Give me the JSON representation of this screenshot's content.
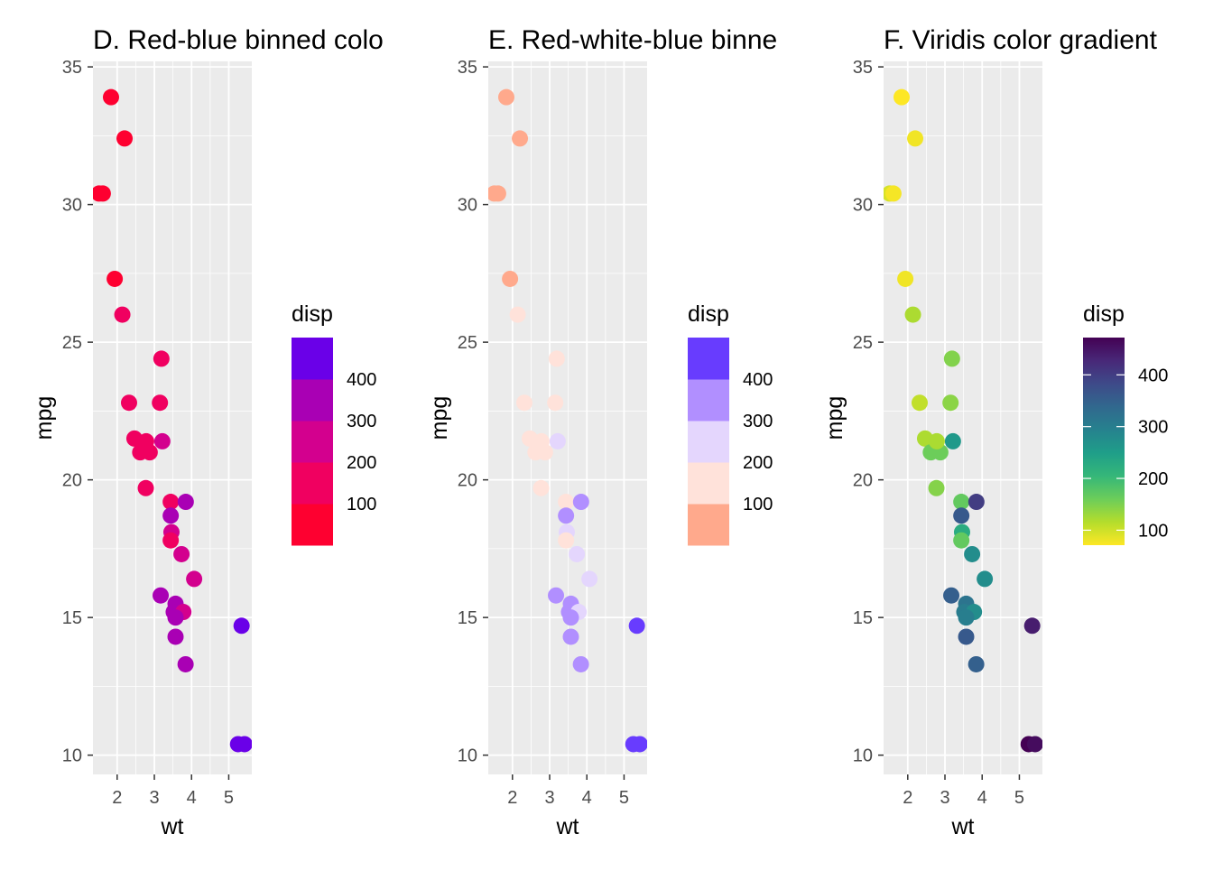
{
  "chart_data": [
    {
      "type": "scatter",
      "title": "D. Red-blue binned colo",
      "xlabel": "wt",
      "ylabel": "mpg",
      "xlim": [
        1.35,
        5.62
      ],
      "ylim": [
        9.3,
        35.2
      ],
      "x_ticks": [
        2,
        3,
        4,
        5
      ],
      "y_ticks": [
        10,
        15,
        20,
        25,
        30,
        35
      ],
      "grid": true,
      "legend": {
        "title": "disp",
        "kind": "binned",
        "position": "right",
        "labels": [
          "100",
          "200",
          "300",
          "400"
        ],
        "colors": [
          "#fe0030",
          "#f00060",
          "#d3008e",
          "#a900b4",
          "#6a00e8"
        ]
      },
      "points": [
        {
          "x": 1.835,
          "y": 33.9,
          "color": "#fe0030"
        },
        {
          "x": 2.2,
          "y": 32.4,
          "color": "#fe0030"
        },
        {
          "x": 1.513,
          "y": 30.4,
          "color": "#fe0030"
        },
        {
          "x": 1.615,
          "y": 30.4,
          "color": "#fe0030"
        },
        {
          "x": 1.935,
          "y": 27.3,
          "color": "#fe0030"
        },
        {
          "x": 2.14,
          "y": 26.0,
          "color": "#f00060"
        },
        {
          "x": 3.19,
          "y": 24.4,
          "color": "#f00060"
        },
        {
          "x": 2.32,
          "y": 22.8,
          "color": "#f00060"
        },
        {
          "x": 3.15,
          "y": 22.8,
          "color": "#f00060"
        },
        {
          "x": 2.465,
          "y": 21.5,
          "color": "#f00060"
        },
        {
          "x": 3.215,
          "y": 21.4,
          "color": "#d3008e"
        },
        {
          "x": 2.62,
          "y": 21.0,
          "color": "#f00060"
        },
        {
          "x": 2.875,
          "y": 21.0,
          "color": "#f00060"
        },
        {
          "x": 2.78,
          "y": 21.4,
          "color": "#f00060"
        },
        {
          "x": 2.77,
          "y": 19.7,
          "color": "#f00060"
        },
        {
          "x": 3.44,
          "y": 19.2,
          "color": "#f00060"
        },
        {
          "x": 3.845,
          "y": 19.2,
          "color": "#a900b4"
        },
        {
          "x": 3.44,
          "y": 18.7,
          "color": "#a900b4"
        },
        {
          "x": 3.46,
          "y": 18.1,
          "color": "#d3008e"
        },
        {
          "x": 3.44,
          "y": 17.8,
          "color": "#f00060"
        },
        {
          "x": 3.73,
          "y": 17.3,
          "color": "#d3008e"
        },
        {
          "x": 4.07,
          "y": 16.4,
          "color": "#d3008e"
        },
        {
          "x": 3.17,
          "y": 15.8,
          "color": "#a900b4"
        },
        {
          "x": 3.57,
          "y": 15.5,
          "color": "#a900b4"
        },
        {
          "x": 3.52,
          "y": 15.2,
          "color": "#a900b4"
        },
        {
          "x": 3.78,
          "y": 15.2,
          "color": "#d3008e"
        },
        {
          "x": 3.57,
          "y": 15.0,
          "color": "#a900b4"
        },
        {
          "x": 3.57,
          "y": 14.3,
          "color": "#a900b4"
        },
        {
          "x": 3.84,
          "y": 13.3,
          "color": "#a900b4"
        },
        {
          "x": 5.345,
          "y": 14.7,
          "color": "#6a00e8"
        },
        {
          "x": 5.25,
          "y": 10.4,
          "color": "#6a00e8"
        },
        {
          "x": 5.424,
          "y": 10.4,
          "color": "#6a00e8"
        }
      ]
    },
    {
      "type": "scatter",
      "title": "E. Red-white-blue binne",
      "xlabel": "wt",
      "ylabel": "mpg",
      "xlim": [
        1.35,
        5.62
      ],
      "ylim": [
        9.3,
        35.2
      ],
      "x_ticks": [
        2,
        3,
        4,
        5
      ],
      "y_ticks": [
        10,
        15,
        20,
        25,
        30,
        35
      ],
      "grid": true,
      "legend": {
        "title": "disp",
        "kind": "binned",
        "position": "right",
        "labels": [
          "100",
          "200",
          "300",
          "400"
        ],
        "colors": [
          "#ffa98c",
          "#ffe2da",
          "#e4d6fd",
          "#b18fff",
          "#683cfe"
        ]
      },
      "points": [
        {
          "x": 1.835,
          "y": 33.9,
          "color": "#ffa98c"
        },
        {
          "x": 2.2,
          "y": 32.4,
          "color": "#ffa98c"
        },
        {
          "x": 1.513,
          "y": 30.4,
          "color": "#ffa98c"
        },
        {
          "x": 1.615,
          "y": 30.4,
          "color": "#ffa98c"
        },
        {
          "x": 1.935,
          "y": 27.3,
          "color": "#ffa98c"
        },
        {
          "x": 2.14,
          "y": 26.0,
          "color": "#ffe2da"
        },
        {
          "x": 3.19,
          "y": 24.4,
          "color": "#ffe2da"
        },
        {
          "x": 2.32,
          "y": 22.8,
          "color": "#ffe2da"
        },
        {
          "x": 3.15,
          "y": 22.8,
          "color": "#ffe2da"
        },
        {
          "x": 2.465,
          "y": 21.5,
          "color": "#ffe2da"
        },
        {
          "x": 3.215,
          "y": 21.4,
          "color": "#e4d6fd"
        },
        {
          "x": 2.62,
          "y": 21.0,
          "color": "#ffe2da"
        },
        {
          "x": 2.875,
          "y": 21.0,
          "color": "#ffe2da"
        },
        {
          "x": 2.78,
          "y": 21.4,
          "color": "#ffe2da"
        },
        {
          "x": 2.77,
          "y": 19.7,
          "color": "#ffe2da"
        },
        {
          "x": 3.44,
          "y": 19.2,
          "color": "#ffe2da"
        },
        {
          "x": 3.845,
          "y": 19.2,
          "color": "#b18fff"
        },
        {
          "x": 3.44,
          "y": 18.7,
          "color": "#b18fff"
        },
        {
          "x": 3.46,
          "y": 18.1,
          "color": "#e4d6fd"
        },
        {
          "x": 3.44,
          "y": 17.8,
          "color": "#ffe2da"
        },
        {
          "x": 3.73,
          "y": 17.3,
          "color": "#e4d6fd"
        },
        {
          "x": 4.07,
          "y": 16.4,
          "color": "#e4d6fd"
        },
        {
          "x": 3.17,
          "y": 15.8,
          "color": "#b18fff"
        },
        {
          "x": 3.57,
          "y": 15.5,
          "color": "#b18fff"
        },
        {
          "x": 3.52,
          "y": 15.2,
          "color": "#b18fff"
        },
        {
          "x": 3.78,
          "y": 15.2,
          "color": "#e4d6fd"
        },
        {
          "x": 3.57,
          "y": 15.0,
          "color": "#b18fff"
        },
        {
          "x": 3.57,
          "y": 14.3,
          "color": "#b18fff"
        },
        {
          "x": 3.84,
          "y": 13.3,
          "color": "#b18fff"
        },
        {
          "x": 5.345,
          "y": 14.7,
          "color": "#683cfe"
        },
        {
          "x": 5.25,
          "y": 10.4,
          "color": "#683cfe"
        },
        {
          "x": 5.424,
          "y": 10.4,
          "color": "#683cfe"
        }
      ]
    },
    {
      "type": "scatter",
      "title": "F. Viridis color gradient",
      "xlabel": "wt",
      "ylabel": "mpg",
      "xlim": [
        1.35,
        5.62
      ],
      "ylim": [
        9.3,
        35.2
      ],
      "x_ticks": [
        2,
        3,
        4,
        5
      ],
      "y_ticks": [
        10,
        15,
        20,
        25,
        30,
        35
      ],
      "grid": true,
      "legend": {
        "title": "disp",
        "kind": "gradient",
        "position": "right",
        "labels": [
          "100",
          "200",
          "300",
          "400"
        ],
        "tick_values": [
          100,
          200,
          300,
          400
        ],
        "range": [
          71.1,
          472
        ],
        "colors": [
          "#fde725",
          "#b4dd2c",
          "#6ccd5a",
          "#35b779",
          "#1f9e89",
          "#26828e",
          "#31688e",
          "#3e4a89",
          "#482878",
          "#440154"
        ]
      },
      "points": [
        {
          "x": 1.835,
          "y": 33.9,
          "disp": 71.1
        },
        {
          "x": 2.2,
          "y": 32.4,
          "disp": 78.7
        },
        {
          "x": 1.513,
          "y": 30.4,
          "disp": 95.1
        },
        {
          "x": 1.615,
          "y": 30.4,
          "disp": 75.7
        },
        {
          "x": 1.935,
          "y": 27.3,
          "disp": 79.0
        },
        {
          "x": 2.14,
          "y": 26.0,
          "disp": 120.3
        },
        {
          "x": 3.19,
          "y": 24.4,
          "disp": 146.7
        },
        {
          "x": 2.32,
          "y": 22.8,
          "disp": 108.0
        },
        {
          "x": 3.15,
          "y": 22.8,
          "disp": 140.8
        },
        {
          "x": 2.465,
          "y": 21.5,
          "disp": 120.1
        },
        {
          "x": 3.215,
          "y": 21.4,
          "disp": 258.0
        },
        {
          "x": 2.62,
          "y": 21.0,
          "disp": 160.0
        },
        {
          "x": 2.875,
          "y": 21.0,
          "disp": 160.0
        },
        {
          "x": 2.78,
          "y": 21.4,
          "disp": 121.0
        },
        {
          "x": 2.77,
          "y": 19.7,
          "disp": 145.0
        },
        {
          "x": 3.44,
          "y": 19.2,
          "disp": 167.6
        },
        {
          "x": 3.845,
          "y": 19.2,
          "disp": 400.0
        },
        {
          "x": 3.44,
          "y": 18.7,
          "disp": 360.0
        },
        {
          "x": 3.46,
          "y": 18.1,
          "disp": 225.0
        },
        {
          "x": 3.44,
          "y": 17.8,
          "disp": 167.6
        },
        {
          "x": 3.73,
          "y": 17.3,
          "disp": 275.8
        },
        {
          "x": 4.07,
          "y": 16.4,
          "disp": 275.8
        },
        {
          "x": 3.17,
          "y": 15.8,
          "disp": 351.0
        },
        {
          "x": 3.57,
          "y": 15.5,
          "disp": 318.0
        },
        {
          "x": 3.52,
          "y": 15.2,
          "disp": 304.0
        },
        {
          "x": 3.78,
          "y": 15.2,
          "disp": 275.8
        },
        {
          "x": 3.57,
          "y": 15.0,
          "disp": 301.0
        },
        {
          "x": 3.57,
          "y": 14.3,
          "disp": 360.0
        },
        {
          "x": 3.84,
          "y": 13.3,
          "disp": 350.0
        },
        {
          "x": 5.345,
          "y": 14.7,
          "disp": 440.0
        },
        {
          "x": 5.25,
          "y": 10.4,
          "disp": 472.0
        },
        {
          "x": 5.424,
          "y": 10.4,
          "disp": 460.0
        }
      ]
    }
  ]
}
